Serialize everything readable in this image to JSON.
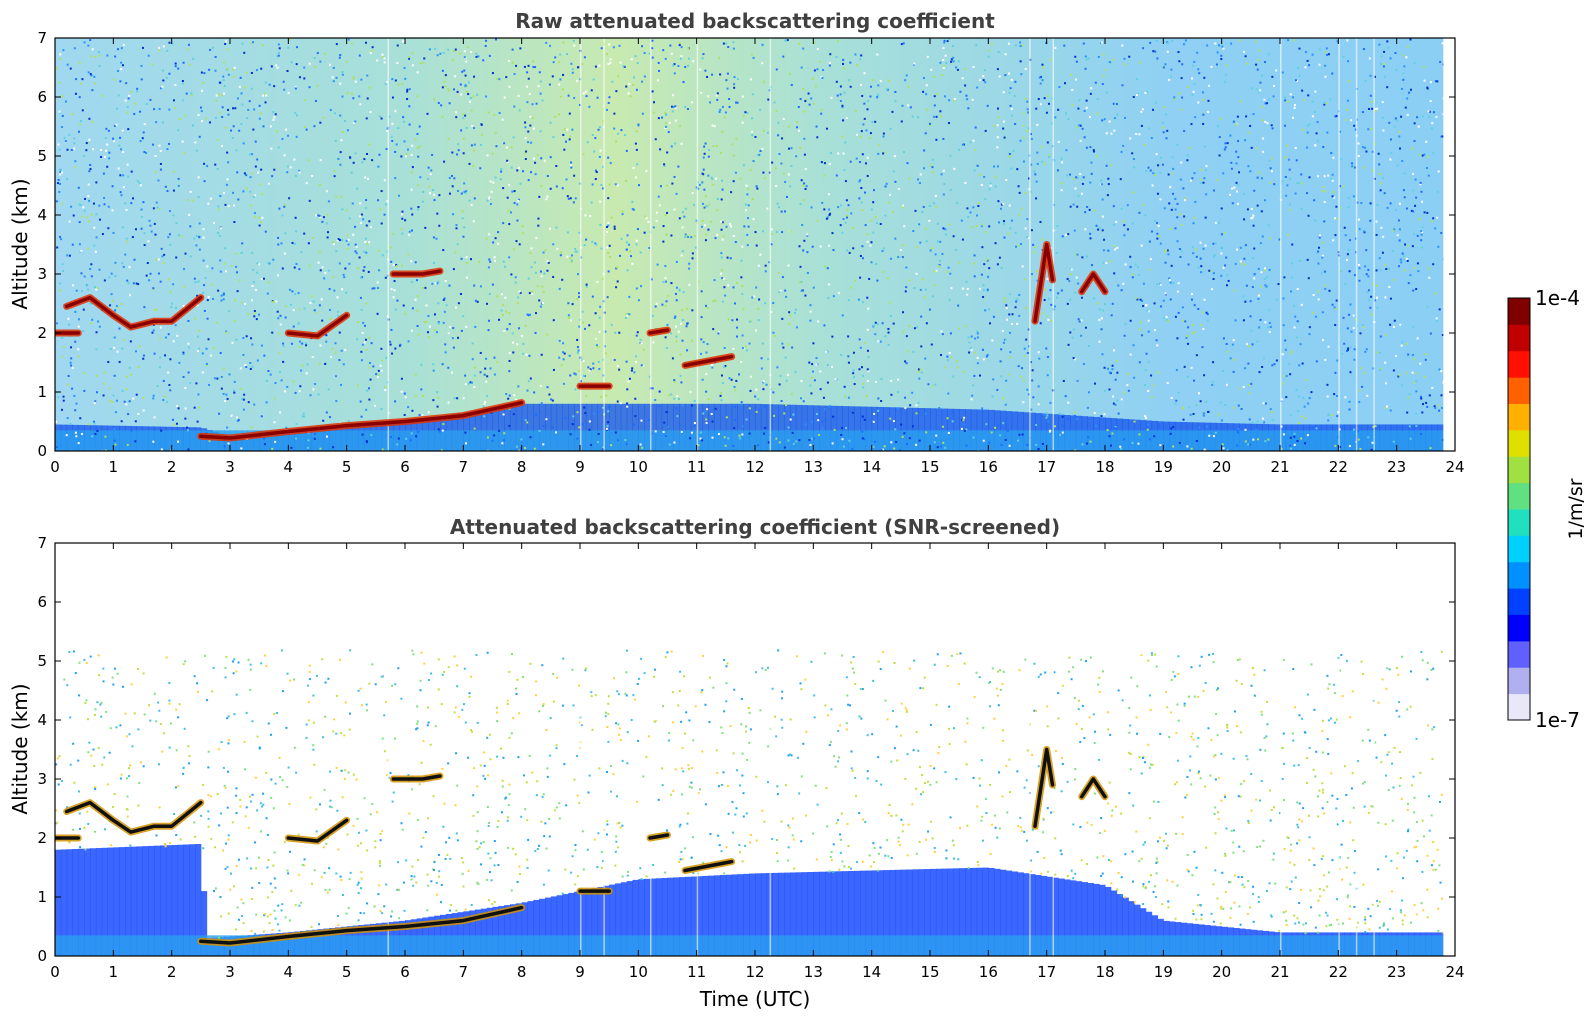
{
  "chart_data": [
    {
      "type": "heatmap",
      "title": "Raw attenuated backscattering coefficient",
      "xlabel": "",
      "ylabel": "Altitude (km)",
      "xlim": [
        0,
        24
      ],
      "ylim": [
        0,
        7
      ],
      "x_ticks": [
        "0",
        "1",
        "2",
        "3",
        "4",
        "5",
        "6",
        "7",
        "8",
        "9",
        "10",
        "11",
        "12",
        "13",
        "14",
        "15",
        "16",
        "17",
        "18",
        "19",
        "20",
        "21",
        "22",
        "23",
        "24"
      ],
      "y_ticks": [
        "0",
        "1",
        "2",
        "3",
        "4",
        "5",
        "6",
        "7"
      ],
      "data_end_time": 23.8,
      "noise_level": "high",
      "features": {
        "boundary_layer_top": [
          [
            0,
            0.45
          ],
          [
            2.5,
            0.4
          ],
          [
            3.0,
            0.25
          ],
          [
            4.0,
            0.35
          ],
          [
            6.0,
            0.5
          ],
          [
            8.0,
            0.8
          ],
          [
            12.0,
            0.8
          ],
          [
            16.0,
            0.7
          ],
          [
            19.0,
            0.5
          ],
          [
            21.0,
            0.45
          ],
          [
            23.8,
            0.45
          ]
        ],
        "cloud_layers": [
          {
            "points": [
              [
                0.2,
                2.45
              ],
              [
                0.6,
                2.6
              ],
              [
                1.0,
                2.3
              ],
              [
                1.3,
                2.1
              ],
              [
                1.7,
                2.2
              ],
              [
                2.0,
                2.2
              ],
              [
                2.5,
                2.6
              ]
            ]
          },
          {
            "points": [
              [
                0.0,
                2.0
              ],
              [
                0.4,
                2.0
              ]
            ]
          },
          {
            "points": [
              [
                2.5,
                0.25
              ],
              [
                3.0,
                0.22
              ],
              [
                4.0,
                0.33
              ],
              [
                5.0,
                0.43
              ],
              [
                6.0,
                0.5
              ],
              [
                7.0,
                0.6
              ],
              [
                8.0,
                0.82
              ]
            ]
          },
          {
            "points": [
              [
                4.0,
                2.0
              ],
              [
                4.5,
                1.95
              ],
              [
                5.0,
                2.3
              ]
            ]
          },
          {
            "points": [
              [
                5.8,
                3.0
              ],
              [
                6.3,
                3.0
              ],
              [
                6.6,
                3.05
              ]
            ]
          },
          {
            "points": [
              [
                9.0,
                1.1
              ],
              [
                9.5,
                1.1
              ]
            ]
          },
          {
            "points": [
              [
                10.2,
                2.0
              ],
              [
                10.5,
                2.05
              ]
            ]
          },
          {
            "points": [
              [
                10.8,
                1.45
              ],
              [
                11.6,
                1.6
              ]
            ]
          },
          {
            "points": [
              [
                16.8,
                2.2
              ],
              [
                17.0,
                3.5
              ],
              [
                17.1,
                2.9
              ]
            ]
          },
          {
            "points": [
              [
                17.6,
                2.7
              ],
              [
                17.8,
                3.0
              ],
              [
                18.0,
                2.7
              ]
            ]
          }
        ]
      }
    },
    {
      "type": "heatmap",
      "title": "Attenuated backscattering coefficient (SNR-screened)",
      "xlabel": "Time (UTC)",
      "ylabel": "Altitude (km)",
      "xlim": [
        0,
        24
      ],
      "ylim": [
        0,
        7
      ],
      "x_ticks": [
        "0",
        "1",
        "2",
        "3",
        "4",
        "5",
        "6",
        "7",
        "8",
        "9",
        "10",
        "11",
        "12",
        "13",
        "14",
        "15",
        "16",
        "17",
        "18",
        "19",
        "20",
        "21",
        "22",
        "23",
        "24"
      ],
      "y_ticks": [
        "0",
        "1",
        "2",
        "3",
        "4",
        "5",
        "6",
        "7"
      ],
      "data_end_time": 23.8,
      "noise_level": "screened",
      "features": {
        "boundary_layer_top": [
          [
            0,
            1.8
          ],
          [
            2.5,
            1.9
          ],
          [
            2.6,
            0.3
          ],
          [
            4.0,
            0.4
          ],
          [
            6.0,
            0.6
          ],
          [
            8.0,
            0.9
          ],
          [
            10.0,
            1.3
          ],
          [
            12.0,
            1.4
          ],
          [
            16.0,
            1.5
          ],
          [
            18.0,
            1.2
          ],
          [
            19.0,
            0.6
          ],
          [
            21.0,
            0.4
          ],
          [
            23.8,
            0.4
          ]
        ],
        "cloud_layers": [
          {
            "points": [
              [
                0.2,
                2.45
              ],
              [
                0.6,
                2.6
              ],
              [
                1.0,
                2.3
              ],
              [
                1.3,
                2.1
              ],
              [
                1.7,
                2.2
              ],
              [
                2.0,
                2.2
              ],
              [
                2.5,
                2.6
              ]
            ]
          },
          {
            "points": [
              [
                0.0,
                2.0
              ],
              [
                0.4,
                2.0
              ]
            ]
          },
          {
            "points": [
              [
                2.5,
                0.25
              ],
              [
                3.0,
                0.22
              ],
              [
                4.0,
                0.33
              ],
              [
                5.0,
                0.43
              ],
              [
                6.0,
                0.5
              ],
              [
                7.0,
                0.6
              ],
              [
                8.0,
                0.82
              ]
            ]
          },
          {
            "points": [
              [
                4.0,
                2.0
              ],
              [
                4.5,
                1.95
              ],
              [
                5.0,
                2.3
              ]
            ]
          },
          {
            "points": [
              [
                5.8,
                3.0
              ],
              [
                6.3,
                3.0
              ],
              [
                6.6,
                3.05
              ]
            ]
          },
          {
            "points": [
              [
                9.0,
                1.1
              ],
              [
                9.5,
                1.1
              ]
            ]
          },
          {
            "points": [
              [
                10.2,
                2.0
              ],
              [
                10.5,
                2.05
              ]
            ]
          },
          {
            "points": [
              [
                10.8,
                1.45
              ],
              [
                11.6,
                1.6
              ]
            ]
          },
          {
            "points": [
              [
                16.8,
                2.2
              ],
              [
                17.0,
                3.5
              ],
              [
                17.1,
                2.9
              ]
            ]
          },
          {
            "points": [
              [
                17.6,
                2.7
              ],
              [
                17.8,
                3.0
              ],
              [
                18.0,
                2.7
              ]
            ]
          }
        ]
      }
    }
  ],
  "colorbar": {
    "label": "1/m/sr",
    "max_label": "1e-4",
    "min_label": "1e-7",
    "scale": "log",
    "colors": [
      "#e8e8f8",
      "#b0b0f0",
      "#6060ff",
      "#0000ff",
      "#0040ff",
      "#0090ff",
      "#00d0ff",
      "#20e0c0",
      "#60e080",
      "#a0e040",
      "#e0e000",
      "#ffb000",
      "#ff6000",
      "#ff1000",
      "#c00000",
      "#800000"
    ]
  }
}
